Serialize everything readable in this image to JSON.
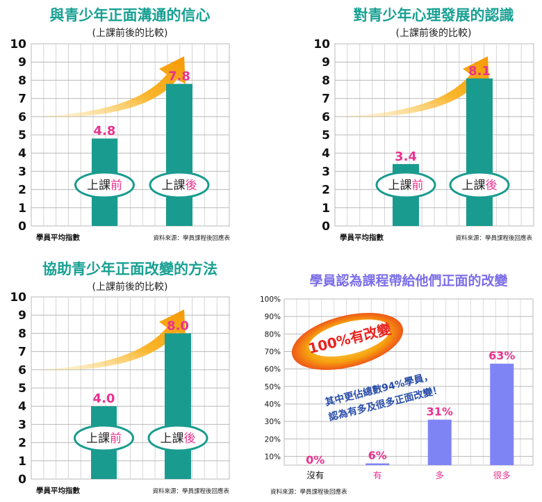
{
  "colors": {
    "teal": "#1a9b8f",
    "title_teal": "#17a093",
    "magenta": "#e8338e",
    "purple_title": "#7b6ee8",
    "purple_bar": "#7f84f5",
    "grid": "#b8b8b8",
    "orange": "#f7a20f",
    "red": "#e8231e"
  },
  "chart_data": [
    {
      "type": "bar",
      "title": "與青少年正面溝通的信心",
      "subtitle": "(上課前後的比較)",
      "categories": [
        "上課前",
        "上課後"
      ],
      "values": [
        4.8,
        7.8
      ],
      "value_labels": [
        "4.8",
        "7.8"
      ],
      "yticks": [
        "0",
        "1",
        "2",
        "3",
        "4",
        "5",
        "6",
        "7",
        "8",
        "9",
        "10"
      ],
      "ylim": [
        0,
        10
      ],
      "xlabel": "學員平均指數",
      "source": "資料來源：學員課程後回應表",
      "grid": true
    },
    {
      "type": "bar",
      "title": "對青少年心理發展的認識",
      "subtitle": "(上課前後的比較)",
      "categories": [
        "上課前",
        "上課後"
      ],
      "values": [
        3.4,
        8.1
      ],
      "value_labels": [
        "3.4",
        "8.1"
      ],
      "yticks": [
        "0",
        "1",
        "2",
        "3",
        "4",
        "5",
        "6",
        "7",
        "8",
        "9",
        "10"
      ],
      "ylim": [
        0,
        10
      ],
      "xlabel": "學員平均指數",
      "source": "資料來源：學員課程後回應表",
      "grid": true
    },
    {
      "type": "bar",
      "title": "協助青少年正面改變的方法",
      "subtitle": "(上課前後的比較)",
      "categories": [
        "上課前",
        "上課後"
      ],
      "values": [
        4.0,
        8.0
      ],
      "value_labels": [
        "4.0",
        "8.0"
      ],
      "yticks": [
        "0",
        "1",
        "2",
        "3",
        "4",
        "5",
        "6",
        "7",
        "8",
        "9",
        "10"
      ],
      "ylim": [
        0,
        10
      ],
      "xlabel": "學員平均指數",
      "source": "資料來源：學員課程後回應表",
      "grid": true
    },
    {
      "type": "bar",
      "title": "學員認為課程帶給他們正面的改變",
      "categories": [
        "沒有",
        "有",
        "多",
        "很多"
      ],
      "values": [
        0,
        6,
        31,
        63
      ],
      "value_labels": [
        "0%",
        "6%",
        "31%",
        "63%"
      ],
      "yticks": [
        "10%",
        "20%",
        "30%",
        "40%",
        "50%",
        "60%",
        "70%",
        "80%",
        "90%",
        "100%"
      ],
      "ylim": [
        5,
        100
      ],
      "source": "資料來源：學員課程後回應表",
      "badge": "100%有改變",
      "annotation_lines": [
        "其中更佔總數94%學員，",
        "認為有多及很多正面改變！"
      ],
      "grid": true
    }
  ]
}
